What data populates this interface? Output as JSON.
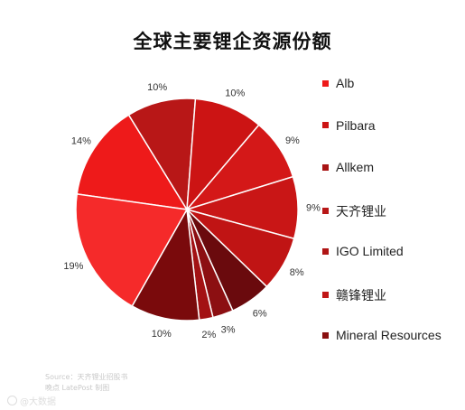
{
  "chart_data": {
    "type": "pie",
    "title": "全球主要锂企资源份额",
    "slices": [
      {
        "label": "14%",
        "value": 14,
        "color": "#ee1a1a"
      },
      {
        "label": "10%",
        "value": 10,
        "color": "#b81717"
      },
      {
        "label": "10%",
        "value": 10,
        "color": "#cc1414"
      },
      {
        "label": "9%",
        "value": 9,
        "color": "#d41818"
      },
      {
        "label": "9%",
        "value": 9,
        "color": "#c91616"
      },
      {
        "label": "8%",
        "value": 8,
        "color": "#c01414"
      },
      {
        "label": "6%",
        "value": 6,
        "color": "#6a0a0d"
      },
      {
        "label": "3%",
        "value": 3,
        "color": "#8c0f12"
      },
      {
        "label": "2%",
        "value": 2,
        "color": "#a31214"
      },
      {
        "label": "10%",
        "value": 10,
        "color": "#7a0a0c"
      },
      {
        "label": "19%",
        "value": 19,
        "color": "#f52a2a"
      }
    ],
    "legend": [
      {
        "label": "Alb",
        "color": "#ee1a1a"
      },
      {
        "label": "Pilbara",
        "color": "#cc1414"
      },
      {
        "label": "Allkem",
        "color": "#a81414"
      },
      {
        "label": "天齐锂业",
        "color": "#b81717"
      },
      {
        "label": "IGO Limited",
        "color": "#b01515"
      },
      {
        "label": "赣锋锂业",
        "color": "#c01616"
      },
      {
        "label": "Mineral Resources",
        "color": "#8a1010"
      }
    ],
    "legend_position": "right"
  },
  "source": {
    "line1": "Source：天齐锂业招股书",
    "line2": "晚点 LatePost 制图"
  },
  "watermark": {
    "text": "@大数据"
  }
}
